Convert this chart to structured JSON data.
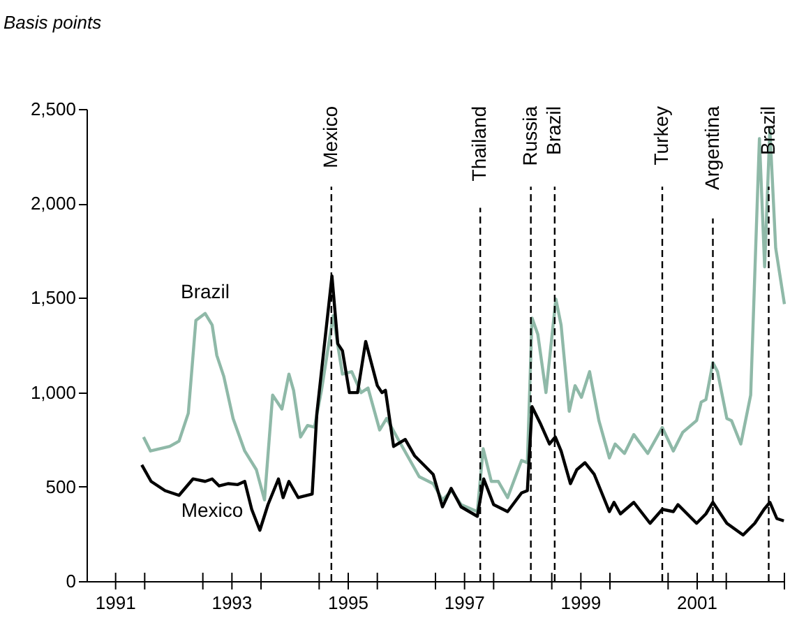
{
  "chart_data": {
    "type": "line",
    "ylabel": "Basis points",
    "xlim": [
      1990.5,
      2002.5
    ],
    "ylim": [
      0,
      2500
    ],
    "xticks": [
      1991,
      {
        "value": 1991.5,
        "label": null
      },
      {
        "value": 1992.5,
        "label": null
      },
      1993,
      {
        "value": 1993.5,
        "label": null
      },
      {
        "value": 1994.5,
        "label": null
      },
      1995,
      {
        "value": 1995.5,
        "label": null
      },
      {
        "value": 1996.5,
        "label": null
      },
      1997,
      {
        "value": 1997.5,
        "label": null
      },
      {
        "value": 1998.5,
        "label": null
      },
      1999,
      {
        "value": 1999.5,
        "label": null
      },
      {
        "value": 2000.5,
        "label": null
      },
      2001,
      {
        "value": 2001.5,
        "label": null
      },
      {
        "value": 2002.5,
        "label": null
      }
    ],
    "yticks": [
      0,
      500,
      {
        "value": 1000,
        "label": "1,000"
      },
      {
        "value": 1500,
        "label": "1,500"
      },
      {
        "value": 2000,
        "label": "2,000"
      },
      {
        "value": 2500,
        "label": "2,500"
      }
    ],
    "grid": false,
    "legend": false,
    "line_style": "solid",
    "marker": "none",
    "series": [
      {
        "name": "Brazil",
        "color": "#8fb9a8",
        "x": [
          1991.48,
          1991.6,
          1991.93,
          1992.09,
          1992.25,
          1992.38,
          1992.54,
          1992.66,
          1992.74,
          1992.86,
          1993.02,
          1993.22,
          1993.42,
          1993.56,
          1993.7,
          1993.86,
          1993.98,
          1994.06,
          1994.18,
          1994.3,
          1994.42,
          1994.54,
          1994.74,
          1994.9,
          1995.06,
          1995.22,
          1995.34,
          1995.54,
          1995.66,
          1995.86,
          1996.22,
          1996.46,
          1996.62,
          1996.78,
          1996.94,
          1997.22,
          1997.32,
          1997.46,
          1997.58,
          1997.74,
          1997.98,
          1998.08,
          1998.16,
          1998.26,
          1998.4,
          1998.57,
          1998.66,
          1998.8,
          1998.9,
          1999.01,
          1999.15,
          1999.31,
          1999.49,
          1999.59,
          1999.75,
          1999.91,
          2000.15,
          2000.4,
          2000.59,
          2000.75,
          2000.99,
          2001.07,
          2001.15,
          2001.27,
          2001.35,
          2001.51,
          2001.59,
          2001.75,
          2001.92,
          2002.07,
          2002.16,
          2002.25,
          2002.35,
          2002.5
        ],
        "values": [
          763,
          689,
          713,
          741,
          889,
          1380,
          1417,
          1356,
          1195,
          1084,
          861,
          689,
          590,
          430,
          985,
          911,
          1096,
          1010,
          763,
          824,
          815,
          1010,
          1405,
          1096,
          1109,
          998,
          1022,
          800,
          861,
          750,
          553,
          516,
          430,
          479,
          405,
          368,
          701,
          528,
          528,
          442,
          639,
          627,
          1393,
          1306,
          998,
          1493,
          1356,
          899,
          1035,
          973,
          1109,
          850,
          652,
          726,
          676,
          776,
          676,
          813,
          689,
          787,
          850,
          948,
          961,
          1157,
          1109,
          861,
          850,
          726,
          985,
          2343,
          1664,
          2393,
          1763,
          1467
        ]
      },
      {
        "name": "Mexico",
        "color": "#000000",
        "x": [
          1991.45,
          1991.61,
          1991.85,
          1992.09,
          1992.33,
          1992.54,
          1992.66,
          1992.78,
          1992.94,
          1993.1,
          1993.22,
          1993.34,
          1993.48,
          1993.62,
          1993.8,
          1993.88,
          1993.98,
          1994.14,
          1994.38,
          1994.46,
          1994.72,
          1994.82,
          1994.9,
          1995.02,
          1995.16,
          1995.3,
          1995.5,
          1995.58,
          1995.64,
          1995.78,
          1995.98,
          1996.14,
          1996.3,
          1996.46,
          1996.62,
          1996.77,
          1996.94,
          1997.22,
          1997.33,
          1997.5,
          1997.74,
          1997.98,
          1998.08,
          1998.16,
          1998.3,
          1998.46,
          1998.56,
          1998.66,
          1998.82,
          1998.93,
          1999.07,
          1999.23,
          1999.49,
          1999.57,
          1999.68,
          1999.91,
          2000.19,
          2000.4,
          2000.59,
          2000.67,
          2000.99,
          2001.15,
          2001.27,
          2001.51,
          2001.79,
          2001.99,
          2002.15,
          2002.25,
          2002.37,
          2002.49
        ],
        "values": [
          615,
          528,
          479,
          454,
          541,
          528,
          541,
          504,
          516,
          511,
          528,
          380,
          269,
          405,
          541,
          442,
          528,
          442,
          461,
          887,
          1615,
          1257,
          1220,
          998,
          998,
          1269,
          1035,
          998,
          1010,
          713,
          750,
          664,
          615,
          565,
          393,
          491,
          393,
          343,
          541,
          405,
          368,
          467,
          479,
          924,
          837,
          726,
          763,
          689,
          516,
          590,
          627,
          565,
          368,
          417,
          356,
          417,
          306,
          380,
          368,
          405,
          306,
          356,
          417,
          306,
          244,
          306,
          380,
          417,
          331,
          319
        ]
      }
    ],
    "ref_lines": [
      {
        "axis": "x",
        "value": 1994.71,
        "label": "Mexico",
        "line_style": "dashed",
        "color": "#000000"
      },
      {
        "axis": "x",
        "value": 1997.27,
        "label": "Thailand",
        "line_style": "dashed",
        "color": "#000000"
      },
      {
        "axis": "x",
        "value": 1998.14,
        "label": "Russia",
        "line_style": "dashed",
        "color": "#000000"
      },
      {
        "axis": "x",
        "value": 1998.55,
        "label": "Brazil",
        "line_style": "dashed",
        "color": "#000000"
      },
      {
        "axis": "x",
        "value": 2000.4,
        "label": "Turkey",
        "line_style": "dashed",
        "color": "#000000"
      },
      {
        "axis": "x",
        "value": 2001.27,
        "label": "Argentina",
        "line_style": "dashed",
        "color": "#000000"
      },
      {
        "axis": "x",
        "value": 2002.23,
        "label": "Brazil",
        "line_style": "dashed",
        "color": "#000000"
      }
    ]
  }
}
